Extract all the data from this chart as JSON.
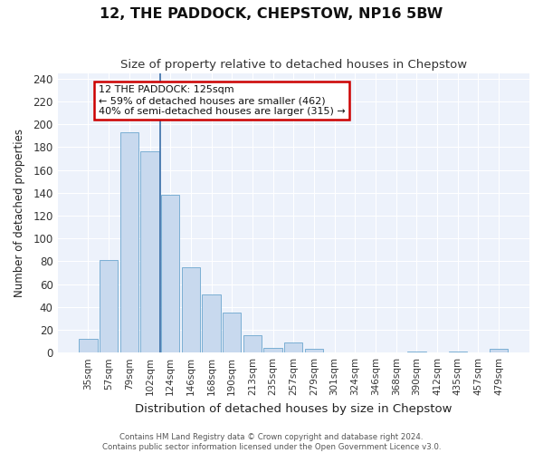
{
  "title": "12, THE PADDOCK, CHEPSTOW, NP16 5BW",
  "subtitle": "Size of property relative to detached houses in Chepstow",
  "xlabel": "Distribution of detached houses by size in Chepstow",
  "ylabel": "Number of detached properties",
  "bar_labels": [
    "35sqm",
    "57sqm",
    "79sqm",
    "102sqm",
    "124sqm",
    "146sqm",
    "168sqm",
    "190sqm",
    "213sqm",
    "235sqm",
    "257sqm",
    "279sqm",
    "301sqm",
    "324sqm",
    "346sqm",
    "368sqm",
    "390sqm",
    "412sqm",
    "435sqm",
    "457sqm",
    "479sqm"
  ],
  "bar_values": [
    12,
    81,
    193,
    176,
    138,
    75,
    51,
    35,
    15,
    4,
    9,
    3,
    0,
    0,
    0,
    0,
    1,
    0,
    1,
    0,
    3
  ],
  "bar_color": "#c8d9ee",
  "bar_edge_color": "#7bafd4",
  "ylim": [
    0,
    245
  ],
  "yticks": [
    0,
    20,
    40,
    60,
    80,
    100,
    120,
    140,
    160,
    180,
    200,
    220,
    240
  ],
  "annotation_title": "12 THE PADDOCK: 125sqm",
  "annotation_line1": "← 59% of detached houses are smaller (462)",
  "annotation_line2": "40% of semi-detached houses are larger (315) →",
  "annotation_box_color": "#ffffff",
  "annotation_box_edge": "#cc0000",
  "vline_x_index": 3.5,
  "footer1": "Contains HM Land Registry data © Crown copyright and database right 2024.",
  "footer2": "Contains public sector information licensed under the Open Government Licence v3.0."
}
